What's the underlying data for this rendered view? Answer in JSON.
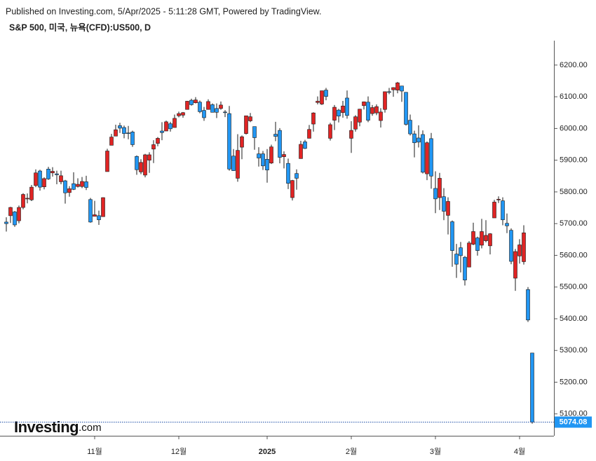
{
  "header": {
    "published": "Published on Investing.com, 5/Apr/2025 - 5:11:28 GMT, Powered by TradingView.",
    "symbol": "S&P 500, 미국, 뉴욕(CFD):US500, D"
  },
  "watermark": {
    "brand": "Investing",
    "suffix": ".com"
  },
  "chart_data": {
    "type": "candlestick",
    "up_color": "#e02424",
    "down_color": "#2196f3",
    "outline_color": "#1a1a1a",
    "categories": [
      null,
      null,
      null,
      null,
      null,
      null,
      null,
      null,
      null,
      null,
      null,
      null,
      null,
      null,
      null,
      null,
      null,
      null,
      null,
      null,
      null,
      "11월",
      null,
      null,
      null,
      null,
      null,
      null,
      null,
      null,
      null,
      null,
      null,
      null,
      null,
      null,
      null,
      null,
      null,
      null,
      null,
      "12월",
      null,
      null,
      null,
      null,
      null,
      null,
      null,
      null,
      null,
      null,
      null,
      null,
      null,
      null,
      null,
      null,
      null,
      null,
      null,
      null,
      "2025",
      null,
      null,
      null,
      null,
      null,
      null,
      null,
      null,
      null,
      null,
      null,
      null,
      null,
      null,
      null,
      null,
      null,
      null,
      null,
      "2월",
      null,
      null,
      null,
      null,
      null,
      null,
      null,
      null,
      null,
      null,
      null,
      null,
      null,
      null,
      null,
      null,
      null,
      null,
      null,
      "3월",
      null,
      null,
      null,
      null,
      null,
      null,
      null,
      null,
      null,
      null,
      null,
      null,
      null,
      null,
      null,
      null,
      null,
      null,
      null,
      "4월",
      null,
      null,
      null
    ],
    "open": [
      5705,
      5725,
      5737,
      5709,
      5751,
      5778,
      5775,
      5820,
      5866,
      5816,
      5872,
      5860,
      5857,
      5832,
      5835,
      5798,
      5826,
      5817,
      5817,
      5832,
      5776,
      5723,
      5725,
      5722,
      5864,
      5947,
      5976,
      6009,
      6003,
      5986,
      5989,
      5912,
      5863,
      5853,
      5900,
      5935,
      5953,
      5992,
      5992,
      6015,
      6003,
      6040,
      6042,
      6060,
      6089,
      6081,
      6083,
      6057,
      6060,
      6075,
      6063,
      6063,
      6052,
      6047,
      5913,
      5843,
      5941,
      5984,
      6024,
      6006,
      5920,
      5920,
      5903,
      5891,
      5982,
      5994,
      5911,
      5890,
      5782,
      5858,
      5905,
      5958,
      5969,
      6014,
      6082,
      6077,
      6121,
      5969,
      6026,
      6058,
      6050,
      6096,
      5969,
      5998,
      6020,
      6072,
      6083,
      6047,
      6049,
      6025,
      6060,
      6116,
      6122,
      6121,
      6134,
      6114,
      6026,
      5983,
      5970,
      5981,
      5857,
      5968,
      5811,
      5782,
      5785,
      5726,
      5706,
      5604,
      5624,
      5594,
      5563,
      5635,
      5655,
      5632,
      5646,
      5630,
      5718,
      5775,
      5772,
      5701,
      5679,
      5528,
      5598,
      5580,
      5492,
      5292
    ],
    "high": [
      5720,
      5753,
      5740,
      5757,
      5796,
      5795,
      5822,
      5871,
      5870,
      5846,
      5879,
      5878,
      5867,
      5867,
      5838,
      5818,
      5862,
      5843,
      5847,
      5851,
      5781,
      5772,
      5741,
      5783,
      5936,
      5983,
      6012,
      6018,
      6009,
      6008,
      5993,
      5915,
      5903,
      5920,
      5925,
      5963,
      5973,
      6020,
      6025,
      6021,
      6044,
      6053,
      6052,
      6087,
      6094,
      6099,
      6088,
      6068,
      6092,
      6079,
      6079,
      6085,
      6058,
      6071,
      5935,
      5982,
      5978,
      6040,
      6049,
      6006,
      5941,
      5929,
      5935,
      5949,
      6021,
      6001,
      5928,
      5905,
      5838,
      5871,
      5961,
      5964,
      6011,
      6051,
      6101,
      6119,
      6128,
      6018,
      6074,
      6062,
      6087,
      6120,
      6023,
      6042,
      6062,
      6085,
      6101,
      6074,
      6076,
      6064,
      6116,
      6128,
      6130,
      6147,
      6134,
      6115,
      6044,
      5993,
      6010,
      5994,
      5959,
      5986,
      5865,
      5860,
      5812,
      5783,
      5710,
      5636,
      5642,
      5598,
      5645,
      5703,
      5659,
      5715,
      5711,
      5670,
      5775,
      5786,
      5783,
      5732,
      5685,
      5620,
      5651,
      5695,
      5500,
      5292
    ],
    "low": [
      5675,
      5702,
      5690,
      5701,
      5745,
      5764,
      5771,
      5815,
      5804,
      5808,
      5838,
      5848,
      5824,
      5824,
      5763,
      5785,
      5806,
      5814,
      5812,
      5806,
      5703,
      5723,
      5696,
      5722,
      5864,
      5947,
      5976,
      5986,
      5969,
      5966,
      5942,
      5854,
      5856,
      5846,
      5860,
      5891,
      5944,
      5963,
      5992,
      5990,
      6003,
      6035,
      6034,
      6060,
      6072,
      6079,
      6048,
      6024,
      6060,
      6051,
      6033,
      6059,
      6036,
      5867,
      5866,
      5832,
      5903,
      5981,
      6020,
      5933,
      5880,
      5869,
      5829,
      5888,
      5960,
      5890,
      5874,
      5809,
      5773,
      5807,
      5905,
      5935,
      5969,
      5990,
      6076,
      6074,
      6089,
      5962,
      5995,
      6019,
      6034,
      6031,
      5923,
      5990,
      6007,
      6060,
      6020,
      6040,
      6042,
      6003,
      6050,
      6108,
      6100,
      6111,
      6084,
      6009,
      5978,
      5909,
      5940,
      5858,
      5837,
      5810,
      5733,
      5743,
      5711,
      5666,
      5564,
      5529,
      5546,
      5505,
      5563,
      5632,
      5599,
      5622,
      5641,
      5603,
      5718,
      5765,
      5695,
      5670,
      5572,
      5488,
      5574,
      5571,
      5390,
      5069
    ],
    "close": [
      5700,
      5751,
      5696,
      5751,
      5792,
      5780,
      5815,
      5860,
      5815,
      5842,
      5841,
      5865,
      5854,
      5851,
      5797,
      5810,
      5808,
      5824,
      5833,
      5814,
      5705,
      5728,
      5712,
      5782,
      5929,
      5973,
      5996,
      6001,
      5984,
      5985,
      5949,
      5870,
      5893,
      5917,
      5917,
      5949,
      5969,
      5987,
      6021,
      5999,
      6032,
      6047,
      6050,
      6086,
      6075,
      6090,
      6053,
      6034,
      6085,
      6051,
      6051,
      6074,
      6050,
      5872,
      5867,
      5931,
      5974,
      6040,
      6037,
      5971,
      5907,
      5882,
      5869,
      5942,
      5975,
      5909,
      5918,
      5827,
      5836,
      5843,
      5950,
      5937,
      5997,
      6049,
      6086,
      6119,
      6101,
      6012,
      6067,
      6039,
      6071,
      6041,
      5994,
      6037,
      6061,
      6084,
      6026,
      6066,
      6069,
      6052,
      6116,
      6115,
      6129,
      6144,
      6118,
      6013,
      5983,
      5955,
      5957,
      5862,
      5955,
      5850,
      5778,
      5843,
      5739,
      5770,
      5615,
      5572,
      5599,
      5522,
      5639,
      5675,
      5615,
      5675,
      5663,
      5668,
      5768,
      5777,
      5712,
      5693,
      5581,
      5612,
      5633,
      5671,
      5396,
      5074.08
    ],
    "ylim": [
      5031,
      6277
    ],
    "yticks": [
      {
        "value": 5100,
        "label": "5100.00"
      },
      {
        "value": 5200,
        "label": "5200.00"
      },
      {
        "value": 5300,
        "label": "5300.00"
      },
      {
        "value": 5400,
        "label": "5400.00"
      },
      {
        "value": 5500,
        "label": "5500.00"
      },
      {
        "value": 5600,
        "label": "5600.00"
      },
      {
        "value": 5700,
        "label": "5700.00"
      },
      {
        "value": 5800,
        "label": "5800.00"
      },
      {
        "value": 5900,
        "label": "5900.00"
      },
      {
        "value": 6000,
        "label": "6000.00"
      },
      {
        "value": 6100,
        "label": "6100.00"
      },
      {
        "value": 6200,
        "label": "6200.00"
      }
    ],
    "last_price": {
      "value": 5074.08,
      "label": "5074.08",
      "color": "#2196f3"
    }
  }
}
